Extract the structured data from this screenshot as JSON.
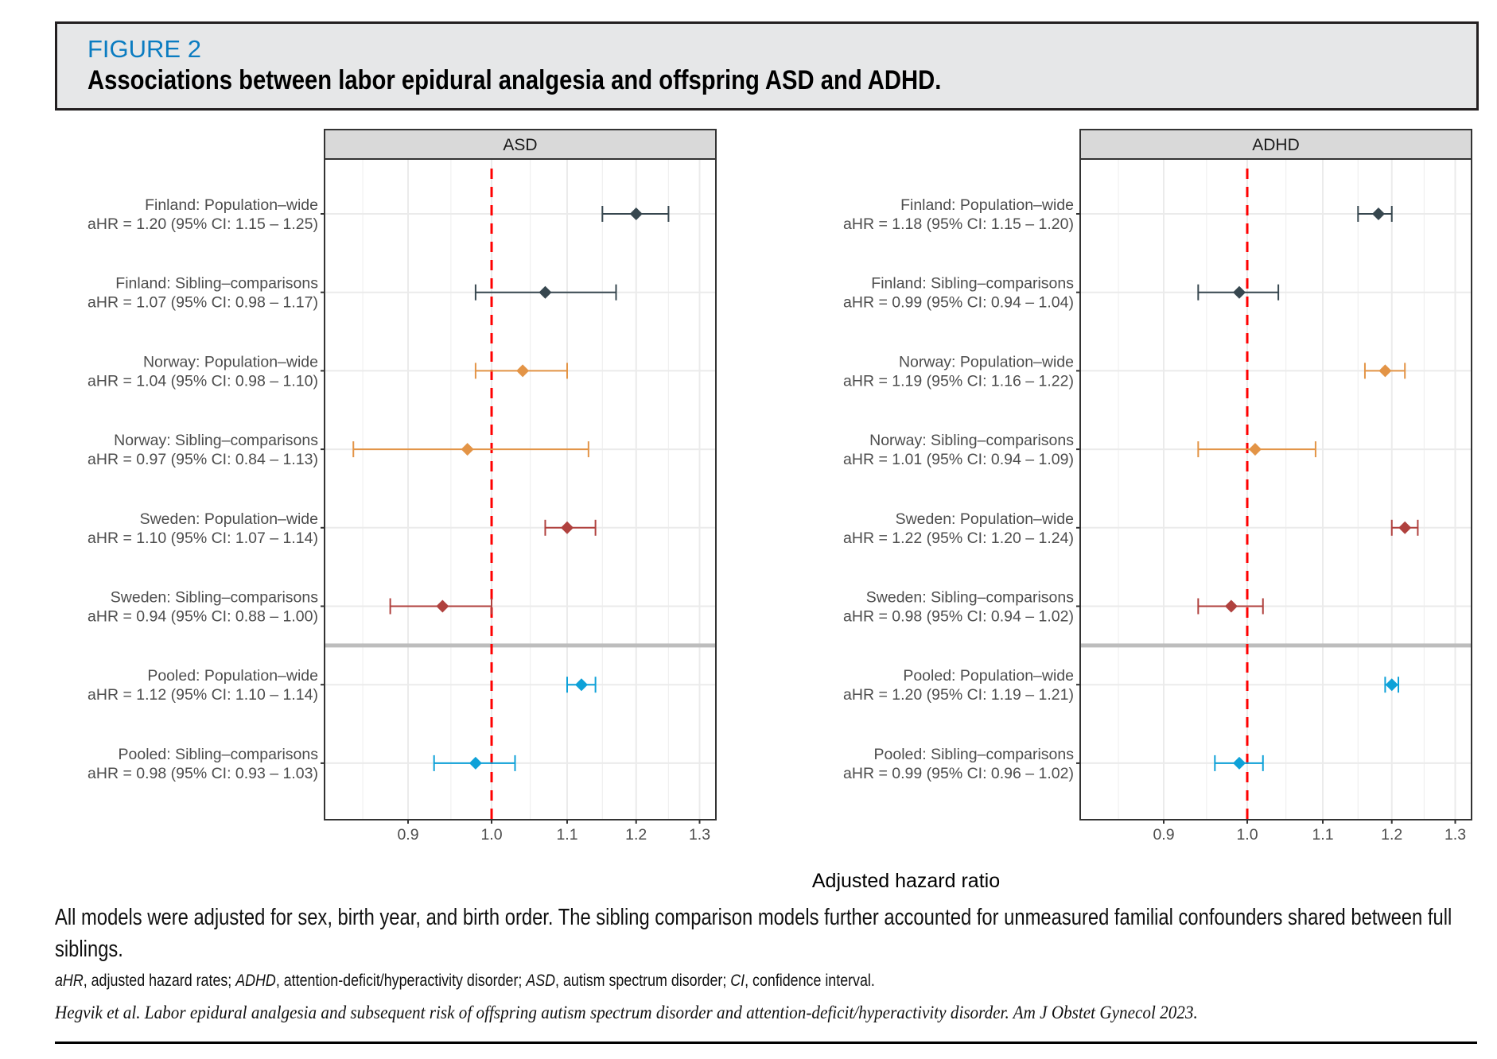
{
  "header": {
    "figure_label": "FIGURE 2",
    "title": "Associations between labor epidural analgesia and offspring ASD and ADHD."
  },
  "chart_data": {
    "type": "forest",
    "xlabel": "Adjusted hazard ratio",
    "x_scale": "log",
    "xlim": [
      0.81,
      1.327
    ],
    "x_ticks": [
      0.9,
      1.0,
      1.1,
      1.2,
      1.3
    ],
    "x_tick_labels": [
      "0.9",
      "1.0",
      "1.1",
      "1.2",
      "1.3"
    ],
    "x_minor_gridlines": [
      0.85,
      0.95,
      1.05,
      1.15,
      1.25
    ],
    "reference_line": {
      "value": 1.0,
      "style": "dashed",
      "color": "#ff0000"
    },
    "grid": true,
    "separator_after_row": 6,
    "group_colors": {
      "Finland": "#37474f",
      "Norway": "#e39446",
      "Sweden": "#b0413e",
      "Pooled": "#0ea1d8"
    },
    "panels": [
      {
        "title": "ASD",
        "rows": [
          {
            "group": "Finland",
            "label": "Finland: Population–wide",
            "stat": "aHR = 1.20 (95% CI: 1.15 – 1.25)",
            "ahr": 1.2,
            "lo": 1.15,
            "hi": 1.25
          },
          {
            "group": "Finland",
            "label": "Finland: Sibling–comparisons",
            "stat": "aHR = 1.07 (95% CI: 0.98 – 1.17)",
            "ahr": 1.07,
            "lo": 0.98,
            "hi": 1.17
          },
          {
            "group": "Norway",
            "label": "Norway: Population–wide",
            "stat": "aHR = 1.04 (95% CI: 0.98 – 1.10)",
            "ahr": 1.04,
            "lo": 0.98,
            "hi": 1.1
          },
          {
            "group": "Norway",
            "label": "Norway: Sibling–comparisons",
            "stat": "aHR = 0.97 (95% CI: 0.84 – 1.13)",
            "ahr": 0.97,
            "lo": 0.84,
            "hi": 1.13
          },
          {
            "group": "Sweden",
            "label": "Sweden: Population–wide",
            "stat": "aHR = 1.10 (95% CI: 1.07 – 1.14)",
            "ahr": 1.1,
            "lo": 1.07,
            "hi": 1.14
          },
          {
            "group": "Sweden",
            "label": "Sweden: Sibling–comparisons",
            "stat": "aHR = 0.94 (95% CI: 0.88 – 1.00)",
            "ahr": 0.94,
            "lo": 0.88,
            "hi": 1.0
          },
          {
            "group": "Pooled",
            "label": "Pooled: Population–wide",
            "stat": "aHR = 1.12 (95% CI: 1.10 – 1.14)",
            "ahr": 1.12,
            "lo": 1.1,
            "hi": 1.14
          },
          {
            "group": "Pooled",
            "label": "Pooled: Sibling–comparisons",
            "stat": "aHR = 0.98 (95% CI: 0.93 – 1.03)",
            "ahr": 0.98,
            "lo": 0.93,
            "hi": 1.03
          }
        ]
      },
      {
        "title": "ADHD",
        "rows": [
          {
            "group": "Finland",
            "label": "Finland: Population–wide",
            "stat": "aHR = 1.18 (95% CI: 1.15 – 1.20)",
            "ahr": 1.18,
            "lo": 1.15,
            "hi": 1.2
          },
          {
            "group": "Finland",
            "label": "Finland: Sibling–comparisons",
            "stat": "aHR = 0.99 (95% CI: 0.94 – 1.04)",
            "ahr": 0.99,
            "lo": 0.94,
            "hi": 1.04
          },
          {
            "group": "Norway",
            "label": "Norway: Population–wide",
            "stat": "aHR = 1.19 (95% CI: 1.16 – 1.22)",
            "ahr": 1.19,
            "lo": 1.16,
            "hi": 1.22
          },
          {
            "group": "Norway",
            "label": "Norway: Sibling–comparisons",
            "stat": "aHR = 1.01 (95% CI: 0.94 – 1.09)",
            "ahr": 1.01,
            "lo": 0.94,
            "hi": 1.09
          },
          {
            "group": "Sweden",
            "label": "Sweden: Population–wide",
            "stat": "aHR = 1.22 (95% CI: 1.20 – 1.24)",
            "ahr": 1.22,
            "lo": 1.2,
            "hi": 1.24
          },
          {
            "group": "Sweden",
            "label": "Sweden: Sibling–comparisons",
            "stat": "aHR = 0.98 (95% CI: 0.94 – 1.02)",
            "ahr": 0.98,
            "lo": 0.94,
            "hi": 1.02
          },
          {
            "group": "Pooled",
            "label": "Pooled: Population–wide",
            "stat": "aHR = 1.20 (95% CI: 1.19 – 1.21)",
            "ahr": 1.2,
            "lo": 1.19,
            "hi": 1.21
          },
          {
            "group": "Pooled",
            "label": "Pooled: Sibling–comparisons",
            "stat": "aHR = 0.99 (95% CI: 0.96 – 1.02)",
            "ahr": 0.99,
            "lo": 0.96,
            "hi": 1.02
          }
        ]
      }
    ]
  },
  "caption": {
    "main": "All models were adjusted for sex, birth year, and birth order. The sibling comparison models further accounted for unmeasured familial confounders shared between full siblings.",
    "abbreviations": [
      {
        "abbr": "aHR",
        "def": ", adjusted hazard rates; "
      },
      {
        "abbr": "ADHD",
        "def": ", attention-deficit/hyperactivity disorder; "
      },
      {
        "abbr": "ASD",
        "def": ", autism spectrum disorder; "
      },
      {
        "abbr": "CI",
        "def": ", confidence interval."
      }
    ],
    "citation": "Hegvik et al. Labor epidural analgesia and subsequent risk of offspring autism spectrum disorder and attention-deficit/hyperactivity disorder. Am J Obstet Gynecol 2023."
  }
}
